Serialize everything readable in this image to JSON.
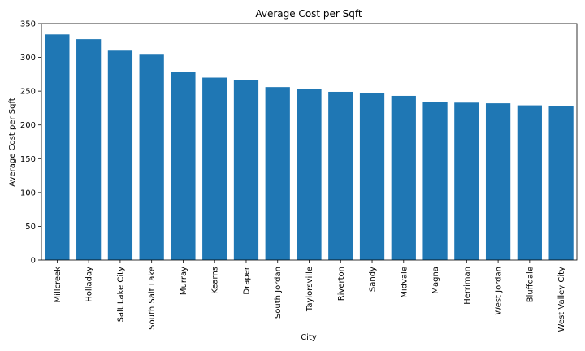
{
  "chart_data": {
    "type": "bar",
    "title": "Average Cost per Sqft",
    "xlabel": "City",
    "ylabel": "Average Cost per Sqft",
    "categories": [
      "Millcreek",
      "Holladay",
      "Salt Lake City",
      "South Salt Lake",
      "Murray",
      "Kearns",
      "Draper",
      "South Jordan",
      "Taylorsville",
      "Riverton",
      "Sandy",
      "Midvale",
      "Magna",
      "Herriman",
      "West Jordan",
      "Bluffdale",
      "West Valley City"
    ],
    "values": [
      334,
      327,
      310,
      304,
      279,
      270,
      267,
      256,
      253,
      249,
      247,
      243,
      234,
      233,
      232,
      229,
      228
    ],
    "ylim": [
      0,
      350
    ],
    "yticks": [
      0,
      50,
      100,
      150,
      200,
      250,
      300,
      350
    ],
    "bar_color": "#1f77b4",
    "grid": false,
    "legend": "none"
  }
}
